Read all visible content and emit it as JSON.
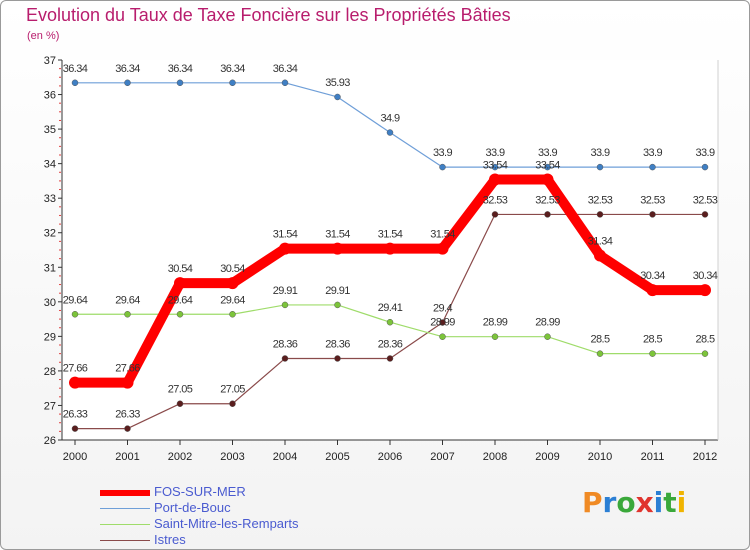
{
  "title": "Evolution du Taux de Taxe Foncière sur les Propriétés Bâties",
  "subtitle": "(en %)",
  "logo": {
    "text": "Proxiti",
    "colors": [
      "#f08a24",
      "#2b7fd4",
      "#3aa83a",
      "#e0342e",
      "#2b7fd4",
      "#3aa83a",
      "#f0b400"
    ]
  },
  "chart_data": {
    "type": "line",
    "title": "Evolution du Taux de Taxe Foncière sur les Propriétés Bâties",
    "ylabel": "(en %)",
    "xlabel": "",
    "ylim": [
      26,
      37
    ],
    "yticks": [
      "26",
      "27",
      "28",
      "29",
      "30",
      "31",
      "32",
      "33",
      "34",
      "35",
      "36",
      "37"
    ],
    "categories": [
      "2000",
      "2001",
      "2002",
      "2003",
      "2004",
      "2005",
      "2006",
      "2007",
      "2008",
      "2009",
      "2010",
      "2011",
      "2012"
    ],
    "series": [
      {
        "name": "FOS-SUR-MER",
        "color": "#ff0000",
        "values": [
          27.66,
          27.66,
          30.54,
          30.54,
          31.54,
          31.54,
          31.54,
          31.54,
          33.54,
          33.54,
          31.34,
          30.34,
          30.34
        ],
        "labels": [
          "27.66",
          "27.66",
          "30.54",
          "30.54",
          "31.54",
          "31.54",
          "31.54",
          "31.54",
          "33.54",
          "33.54",
          "31.34",
          "30.34",
          "30.34"
        ]
      },
      {
        "name": "Port-de-Bouc",
        "color": "#6f9fd8",
        "values": [
          36.34,
          36.34,
          36.34,
          36.34,
          36.34,
          35.93,
          34.9,
          33.9,
          33.9,
          33.9,
          33.9,
          33.9,
          33.9
        ],
        "labels": [
          "36.34",
          "36.34",
          "36.34",
          "36.34",
          "36.34",
          "35.93",
          "34.9",
          "33.9",
          "33.9",
          "33.9",
          "33.9",
          "33.9",
          "33.9"
        ]
      },
      {
        "name": "Saint-Mitre-les-Remparts",
        "color": "#9fdc6a",
        "values": [
          29.64,
          29.64,
          29.64,
          29.64,
          29.91,
          29.91,
          29.41,
          28.99,
          28.99,
          28.99,
          28.5,
          28.5,
          28.5
        ],
        "labels": [
          "29.64",
          "29.64",
          "29.64",
          "29.64",
          "29.91",
          "29.91",
          "29.41",
          "28.99",
          "28.99",
          "28.99",
          "28.5",
          "28.5",
          "28.5"
        ]
      },
      {
        "name": "Istres",
        "color": "#8a4a4a",
        "values": [
          26.33,
          26.33,
          27.05,
          27.05,
          28.36,
          28.36,
          28.36,
          29.4,
          32.53,
          32.53,
          32.53,
          32.53,
          32.53
        ],
        "labels": [
          "26.33",
          "26.33",
          "27.05",
          "27.05",
          "28.36",
          "28.36",
          "28.36",
          "29.4",
          "32.53",
          "32.53",
          "32.53",
          "32.53",
          "32.53"
        ]
      }
    ],
    "grid": false,
    "legend": "bottom-left"
  }
}
